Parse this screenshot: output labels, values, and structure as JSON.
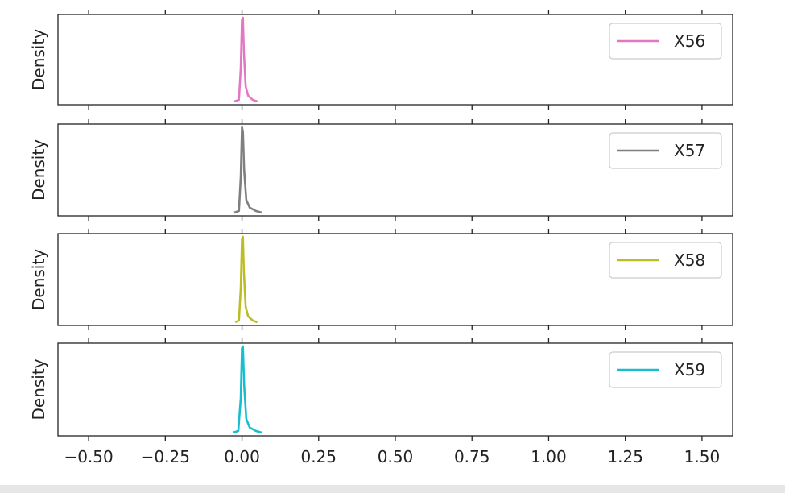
{
  "chart_data": [
    {
      "type": "line",
      "ylabel": "Density",
      "legend": "top-right",
      "xlim": [
        -0.6,
        1.6
      ],
      "xticks": [
        -0.5,
        -0.25,
        0.0,
        0.25,
        0.5,
        0.75,
        1.0,
        1.25,
        1.5
      ],
      "xtick_labels": [
        "−0.50",
        "−0.25",
        "0.00",
        "0.25",
        "0.50",
        "0.75",
        "1.00",
        "1.25",
        "1.50"
      ],
      "grid": false,
      "series": [
        {
          "name": "X56",
          "color": "#e377c2",
          "x": [
            -0.025,
            -0.01,
            -0.004,
            0.0,
            0.003,
            0.006,
            0.012,
            0.02,
            0.035,
            0.05
          ],
          "y": [
            0.0,
            0.02,
            0.4,
            0.98,
            1.0,
            0.6,
            0.18,
            0.07,
            0.02,
            0.0
          ]
        },
        {
          "name": "X57",
          "color": "#7f7f7f",
          "x": [
            -0.025,
            -0.01,
            -0.004,
            0.0,
            0.003,
            0.007,
            0.014,
            0.025,
            0.045,
            0.065
          ],
          "y": [
            0.0,
            0.02,
            0.42,
            1.0,
            0.95,
            0.5,
            0.15,
            0.06,
            0.02,
            0.0
          ]
        },
        {
          "name": "X58",
          "color": "#bcbd22",
          "x": [
            -0.022,
            -0.01,
            -0.004,
            0.0,
            0.003,
            0.006,
            0.012,
            0.02,
            0.035,
            0.05
          ],
          "y": [
            0.0,
            0.02,
            0.4,
            0.97,
            1.0,
            0.6,
            0.18,
            0.07,
            0.02,
            0.0
          ]
        },
        {
          "name": "X59",
          "color": "#17becf",
          "x": [
            -0.03,
            -0.012,
            -0.004,
            0.0,
            0.003,
            0.007,
            0.014,
            0.025,
            0.045,
            0.065
          ],
          "y": [
            0.0,
            0.02,
            0.4,
            0.98,
            1.0,
            0.55,
            0.16,
            0.06,
            0.02,
            0.0
          ]
        }
      ]
    }
  ]
}
